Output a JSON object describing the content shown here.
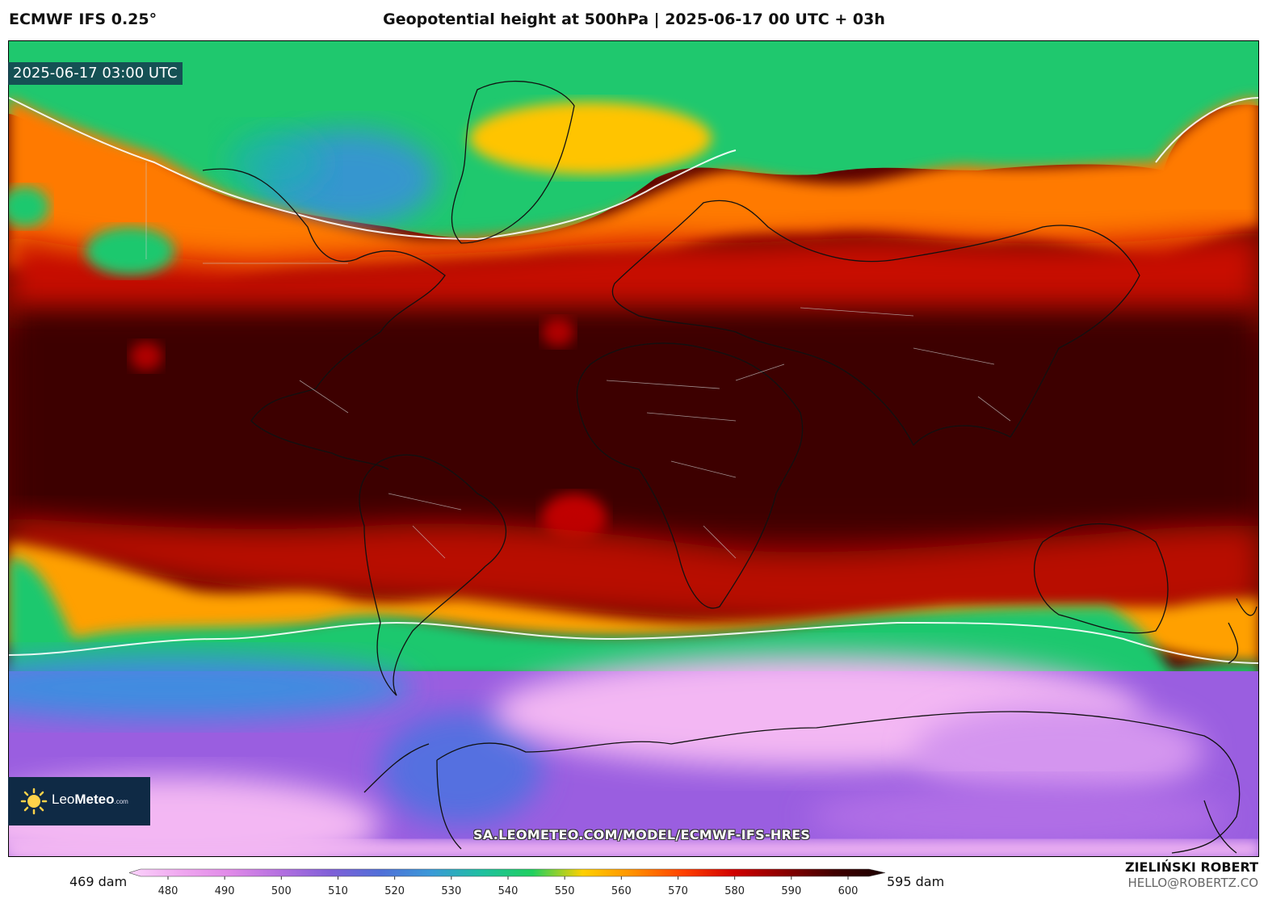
{
  "header": {
    "model": "ECMWF IFS 0.25°",
    "title": "Geopotential height at 500hPa | 2025-06-17 00 UTC + 03h"
  },
  "map": {
    "valid_time": "2025-06-17 03:00 UTC",
    "source_url": "SA.LEOMETEO.COM/MODEL/ECMWF-IFS-HRES"
  },
  "logo": {
    "brand_main": "Leo",
    "brand_rest": "Meteo",
    "brand_suffix": ".com"
  },
  "colorbar": {
    "min_label": "469 dam",
    "max_label": "595 dam",
    "ticks": [
      "480",
      "490",
      "500",
      "510",
      "520",
      "530",
      "540",
      "550",
      "560",
      "570",
      "580",
      "590",
      "600"
    ],
    "colors": [
      "#fbd3fb",
      "#f0a8f0",
      "#e08ae8",
      "#b470e0",
      "#8060d8",
      "#5070d8",
      "#3a9ad8",
      "#20c0a0",
      "#20d060",
      "#ffd000",
      "#ff9000",
      "#ff4000",
      "#d00000",
      "#8a0000",
      "#400000",
      "#1a0000"
    ]
  },
  "author": {
    "name": "ZIELIŃSKI ROBERT",
    "email": "HELLO@ROBERTZ.CO"
  }
}
